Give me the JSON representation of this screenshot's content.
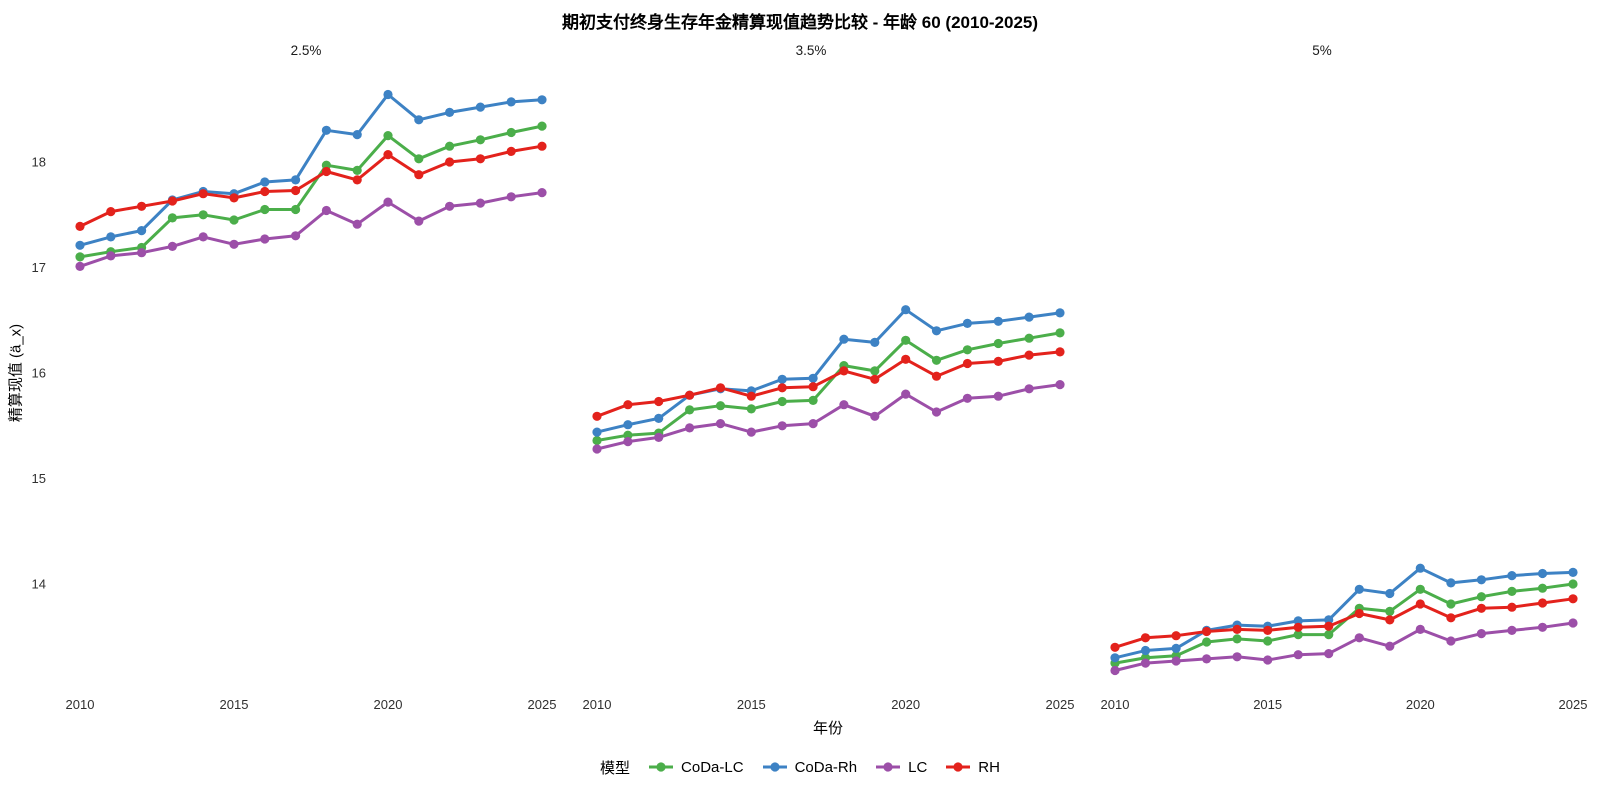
{
  "chart_data": {
    "type": "line",
    "title": "期初支付终身生存年金精算现值趋势比较 - 年龄 60 (2010-2025)",
    "xlabel": "年份",
    "ylabel": "精算现值 (ä_x)",
    "legend_title": "模型",
    "legend_position": "bottom",
    "grid": false,
    "x": [
      2010,
      2011,
      2012,
      2013,
      2014,
      2015,
      2016,
      2017,
      2018,
      2019,
      2020,
      2021,
      2022,
      2023,
      2024,
      2025
    ],
    "x_ticks": [
      2010,
      2015,
      2020,
      2025
    ],
    "y_ticks": [
      18,
      17,
      16,
      15,
      14
    ],
    "ylim": [
      13.1,
      18.75
    ],
    "series_colors": {
      "CoDa-LC": "#4bae4a",
      "CoDa-Rh": "#3d82c4",
      "LC": "#9c4fa8",
      "RH": "#e3221c"
    },
    "legend_order": [
      "CoDa-LC",
      "CoDa-Rh",
      "LC",
      "RH"
    ],
    "facets": [
      {
        "label": "2.5%",
        "series": [
          {
            "name": "CoDa-LC",
            "values": [
              17.1,
              17.15,
              17.19,
              17.47,
              17.5,
              17.45,
              17.55,
              17.55,
              17.97,
              17.92,
              18.25,
              18.03,
              18.15,
              18.21,
              18.28,
              18.34
            ]
          },
          {
            "name": "CoDa-Rh",
            "values": [
              17.21,
              17.29,
              17.35,
              17.64,
              17.72,
              17.7,
              17.81,
              17.83,
              18.3,
              18.26,
              18.64,
              18.4,
              18.47,
              18.52,
              18.57,
              18.59
            ]
          },
          {
            "name": "LC",
            "values": [
              17.01,
              17.11,
              17.14,
              17.2,
              17.29,
              17.22,
              17.27,
              17.3,
              17.54,
              17.41,
              17.62,
              17.44,
              17.58,
              17.61,
              17.67,
              17.71
            ]
          },
          {
            "name": "RH",
            "values": [
              17.39,
              17.53,
              17.58,
              17.63,
              17.7,
              17.66,
              17.72,
              17.73,
              17.91,
              17.83,
              18.07,
              17.88,
              18.0,
              18.03,
              18.1,
              18.15
            ]
          }
        ]
      },
      {
        "label": "3.5%",
        "series": [
          {
            "name": "CoDa-LC",
            "values": [
              15.36,
              15.41,
              15.43,
              15.65,
              15.69,
              15.66,
              15.73,
              15.74,
              16.07,
              16.02,
              16.31,
              16.12,
              16.22,
              16.28,
              16.33,
              16.38
            ]
          },
          {
            "name": "CoDa-Rh",
            "values": [
              15.44,
              15.51,
              15.57,
              15.79,
              15.85,
              15.83,
              15.94,
              15.95,
              16.32,
              16.29,
              16.6,
              16.4,
              16.47,
              16.49,
              16.53,
              16.57
            ]
          },
          {
            "name": "LC",
            "values": [
              15.28,
              15.35,
              15.39,
              15.48,
              15.52,
              15.44,
              15.5,
              15.52,
              15.7,
              15.59,
              15.8,
              15.63,
              15.76,
              15.78,
              15.85,
              15.89
            ]
          },
          {
            "name": "RH",
            "values": [
              15.59,
              15.7,
              15.73,
              15.79,
              15.86,
              15.78,
              15.86,
              15.87,
              16.02,
              15.94,
              16.13,
              15.97,
              16.09,
              16.11,
              16.17,
              16.2
            ]
          }
        ]
      },
      {
        "label": "5%",
        "series": [
          {
            "name": "CoDa-LC",
            "values": [
              13.25,
              13.3,
              13.32,
              13.45,
              13.48,
              13.46,
              13.52,
              13.52,
              13.77,
              13.74,
              13.95,
              13.81,
              13.88,
              13.93,
              13.96,
              14.0
            ]
          },
          {
            "name": "CoDa-Rh",
            "values": [
              13.3,
              13.37,
              13.39,
              13.56,
              13.61,
              13.6,
              13.65,
              13.66,
              13.95,
              13.91,
              14.15,
              14.01,
              14.04,
              14.08,
              14.1,
              14.11
            ]
          },
          {
            "name": "LC",
            "values": [
              13.18,
              13.25,
              13.27,
              13.29,
              13.31,
              13.28,
              13.33,
              13.34,
              13.49,
              13.41,
              13.57,
              13.46,
              13.53,
              13.56,
              13.59,
              13.63
            ]
          },
          {
            "name": "RH",
            "values": [
              13.4,
              13.49,
              13.51,
              13.55,
              13.57,
              13.56,
              13.59,
              13.6,
              13.72,
              13.66,
              13.81,
              13.68,
              13.77,
              13.78,
              13.82,
              13.86
            ]
          }
        ]
      }
    ]
  }
}
